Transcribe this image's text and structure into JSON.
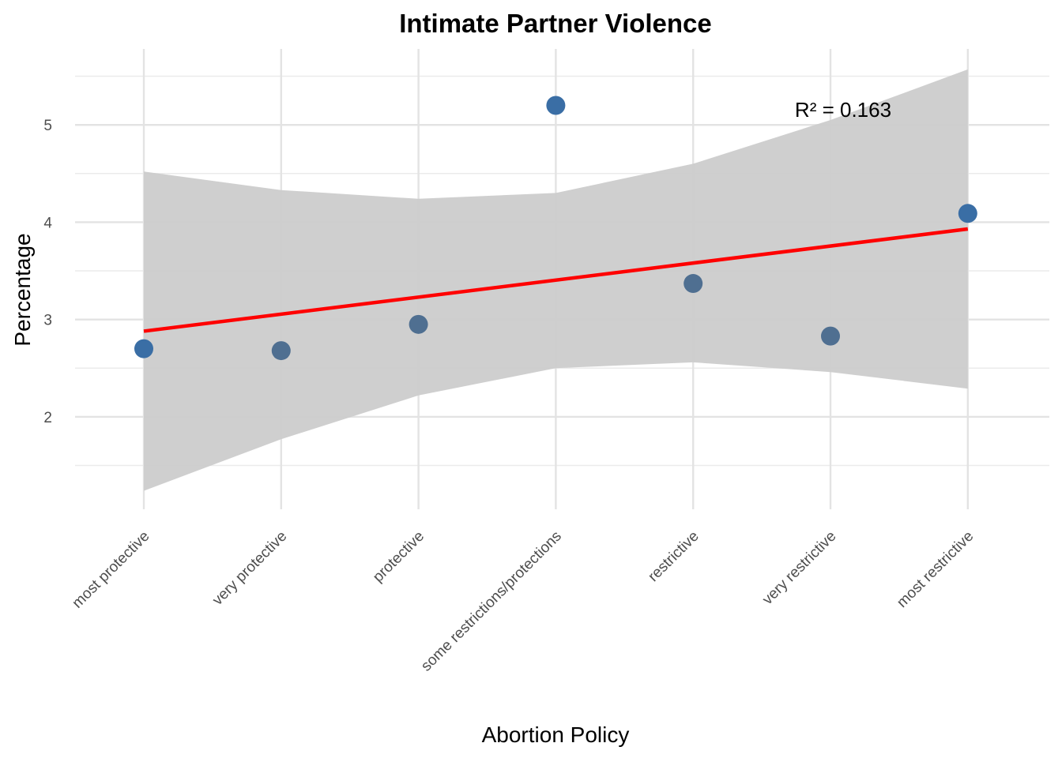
{
  "chart_data": {
    "type": "scatter",
    "title": "Intimate Partner Violence",
    "xlabel": "Abortion Policy",
    "ylabel": "Percentage",
    "categories": [
      "most protective",
      "very protective",
      "protective",
      "some restrictions/protections",
      "restrictive",
      "very restrictive",
      "most restrictive"
    ],
    "values": [
      2.7,
      2.68,
      2.95,
      5.2,
      3.37,
      2.83,
      4.09
    ],
    "point_colors": [
      "#3a6ea5",
      "#4f6f91",
      "#4f6f91",
      "#3a6ea5",
      "#4f6f91",
      "#4f6f91",
      "#3a6ea5"
    ],
    "ylim": [
      1.05,
      5.78
    ],
    "yticks": [
      2,
      3,
      4,
      5
    ],
    "grid": true,
    "fit": {
      "type": "linear",
      "color": "#ff0000",
      "start": 2.88,
      "end": 3.93
    },
    "confidence_band": {
      "color": "#cccccc",
      "upper": [
        4.52,
        4.33,
        4.24,
        4.3,
        4.6,
        5.05,
        5.57
      ],
      "lower": [
        1.24,
        1.77,
        2.22,
        2.5,
        2.56,
        2.46,
        2.29
      ]
    },
    "annotation": "R² = 0.163"
  }
}
